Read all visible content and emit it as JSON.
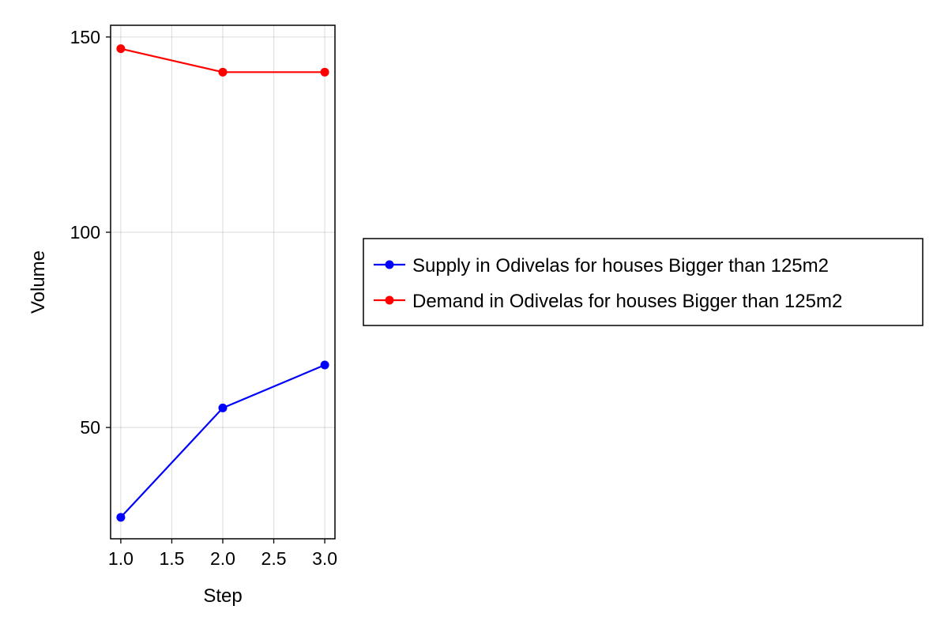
{
  "chart_data": {
    "type": "line",
    "xlabel": "Step",
    "ylabel": "Volume",
    "xlim": [
      0.9,
      3.1
    ],
    "ylim": [
      21.5,
      153
    ],
    "xticks": [
      1.0,
      1.5,
      2.0,
      2.5,
      3.0
    ],
    "xtick_labels": [
      "1.0",
      "1.5",
      "2.0",
      "2.5",
      "3.0"
    ],
    "yticks": [
      50,
      100,
      150
    ],
    "ytick_labels": [
      "50",
      "100",
      "150"
    ],
    "grid": true,
    "legend_position": "right",
    "series": [
      {
        "name": "Supply in Odivelas for houses Bigger than 125m2",
        "color": "#0000ff",
        "x": [
          1,
          2,
          3
        ],
        "y": [
          27,
          55,
          66
        ]
      },
      {
        "name": "Demand in Odivelas for houses Bigger than 125m2",
        "color": "#ff0000",
        "x": [
          1,
          2,
          3
        ],
        "y": [
          147,
          141,
          141
        ]
      }
    ]
  }
}
